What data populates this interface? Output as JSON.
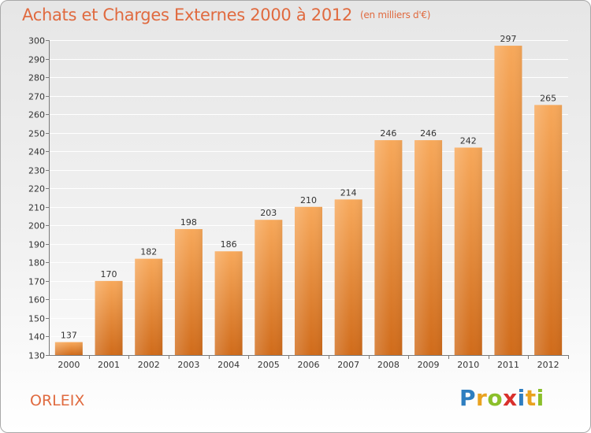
{
  "title": "Achats et Charges Externes 2000 à 2012",
  "unit": "(en milliers d'€)",
  "commune": "ORLEIX",
  "logo": {
    "letters": [
      "P",
      "r",
      "o",
      "x",
      "i",
      "t",
      "i"
    ],
    "colors": [
      "#2e7ec0",
      "#e9a21f",
      "#8bbf2a",
      "#d9302c",
      "#2e7ec0",
      "#e9a21f",
      "#8bbf2a"
    ]
  },
  "colors": {
    "bar_top": "#f7a85a",
    "bar_bottom": "#d06b1a",
    "accent": "#e06a3f"
  },
  "chart_data": {
    "type": "bar",
    "categories": [
      "2000",
      "2001",
      "2002",
      "2003",
      "2004",
      "2005",
      "2006",
      "2007",
      "2008",
      "2009",
      "2010",
      "2011",
      "2012"
    ],
    "values": [
      137,
      170,
      182,
      198,
      186,
      203,
      210,
      214,
      246,
      246,
      242,
      297,
      265
    ],
    "ylim": [
      130,
      300
    ],
    "yticks": [
      130,
      140,
      150,
      160,
      170,
      180,
      190,
      200,
      210,
      220,
      230,
      240,
      250,
      260,
      270,
      280,
      290,
      300
    ],
    "title": "Achats et Charges Externes 2000 à 2012",
    "xlabel": "",
    "ylabel": "",
    "grid": true
  }
}
